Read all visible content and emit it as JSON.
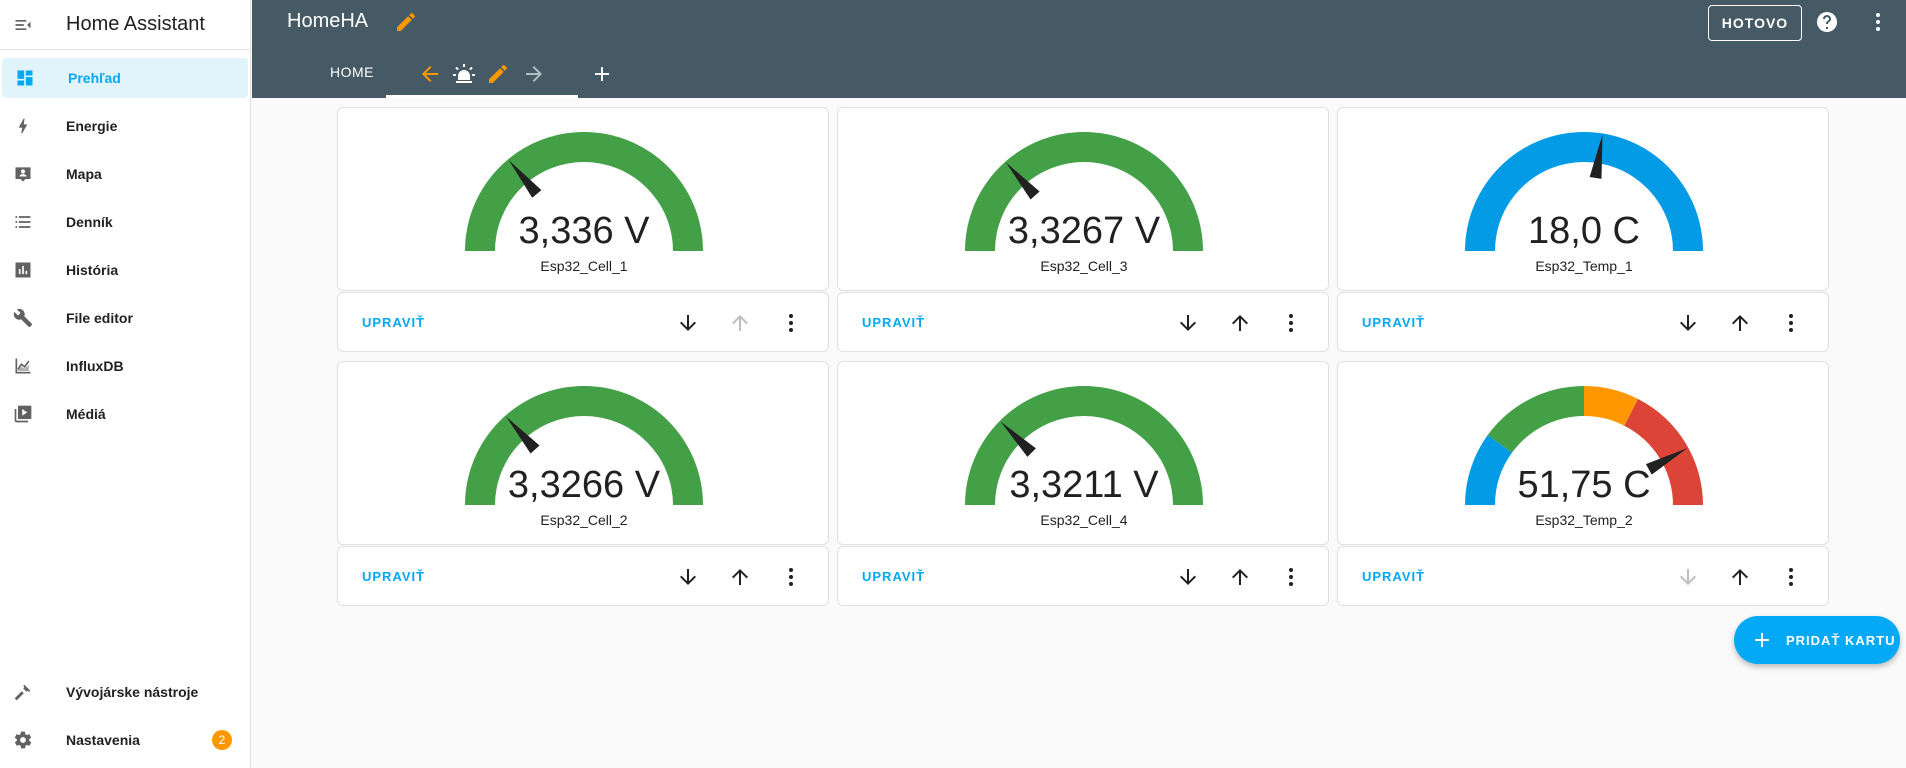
{
  "sidebar": {
    "title": "Home Assistant",
    "items": [
      {
        "label": "Prehľad",
        "icon": "dashboard-icon"
      },
      {
        "label": "Energie",
        "icon": "lightning-icon"
      },
      {
        "label": "Mapa",
        "icon": "map-icon"
      },
      {
        "label": "Denník",
        "icon": "list-icon"
      },
      {
        "label": "História",
        "icon": "chart-icon"
      },
      {
        "label": "File editor",
        "icon": "wrench-icon"
      },
      {
        "label": "InfluxDB",
        "icon": "line-chart-icon"
      },
      {
        "label": "Médiá",
        "icon": "media-icon"
      }
    ],
    "bottom_items": [
      {
        "label": "Vývojárske nástroje",
        "icon": "hammer-icon"
      },
      {
        "label": "Nastavenia",
        "icon": "gear-icon",
        "badge": "2"
      }
    ]
  },
  "header": {
    "title": "HomeHA",
    "done_label": "HOTOVO",
    "tab_home": "HOME"
  },
  "cards": [
    {
      "value": "3,336 V",
      "name": "Esp32_Cell_1",
      "fraction": 0.28,
      "color": "#43a047",
      "up_disabled": true,
      "down_disabled": false
    },
    {
      "value": "3,3267 V",
      "name": "Esp32_Cell_3",
      "fraction": 0.27,
      "color": "#43a047",
      "up_disabled": false,
      "down_disabled": false
    },
    {
      "value": "18,0 C",
      "name": "Esp32_Temp_1",
      "fraction": 0.55,
      "color": "#039be5",
      "up_disabled": false,
      "down_disabled": false
    },
    {
      "value": "3,3266 V",
      "name": "Esp32_Cell_2",
      "fraction": 0.27,
      "color": "#43a047",
      "up_disabled": false,
      "down_disabled": false
    },
    {
      "value": "3,3211 V",
      "name": "Esp32_Cell_4",
      "fraction": 0.25,
      "color": "#43a047",
      "up_disabled": false,
      "down_disabled": false
    },
    {
      "value": "51,75 C",
      "name": "Esp32_Temp_2",
      "fraction": 0.84,
      "color": "severity",
      "up_disabled": false,
      "down_disabled": true
    }
  ],
  "card_edit_label": "UPRAVIŤ",
  "fab_label": "PRIDAŤ KARTU",
  "colors": {
    "accent": "#03a9f4",
    "header": "#455a64",
    "orange": "#ff9800",
    "green": "#43a047",
    "blue": "#039be5",
    "red": "#db4437"
  }
}
